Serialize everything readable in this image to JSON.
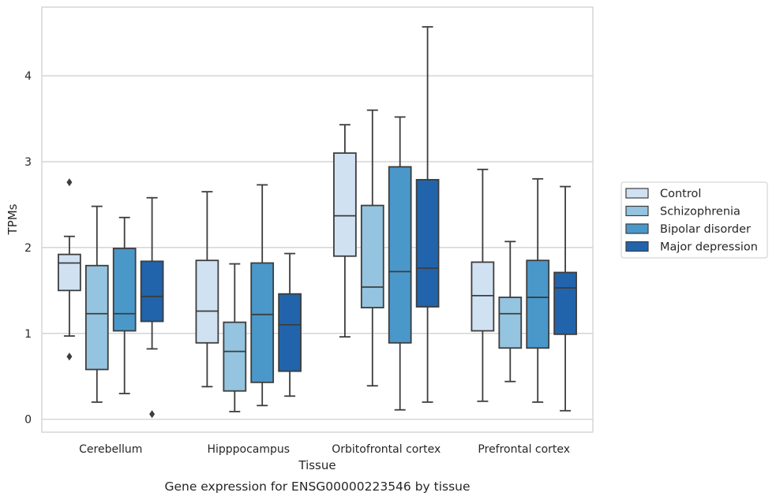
{
  "chart_data": {
    "type": "box",
    "xlabel": "Tissue",
    "ylabel": "TPMs",
    "caption": "Gene expression for ENSG00000223546 by tissue",
    "ylim": [
      -0.15,
      4.8
    ],
    "yticks": [
      0,
      1,
      2,
      3,
      4
    ],
    "grid": "horizontal",
    "legend_position": "right",
    "categories": [
      "Cerebellum",
      "Hipppocampus",
      "Orbitofrontal cortex",
      "Prefrontal cortex"
    ],
    "series": [
      {
        "name": "Control",
        "color": "#d0e1f2",
        "boxes": [
          {
            "whislo": 0.97,
            "q1": 1.5,
            "med": 1.82,
            "q3": 1.92,
            "whishi": 2.13,
            "fliers": [
              2.76,
              0.73
            ]
          },
          {
            "whislo": 0.38,
            "q1": 0.89,
            "med": 1.26,
            "q3": 1.85,
            "whishi": 2.65,
            "fliers": []
          },
          {
            "whislo": 0.96,
            "q1": 1.9,
            "med": 2.37,
            "q3": 3.1,
            "whishi": 3.43,
            "fliers": []
          },
          {
            "whislo": 0.21,
            "q1": 1.03,
            "med": 1.44,
            "q3": 1.83,
            "whishi": 2.91,
            "fliers": []
          }
        ]
      },
      {
        "name": "Schizophrenia",
        "color": "#94c4df",
        "boxes": [
          {
            "whislo": 0.2,
            "q1": 0.58,
            "med": 1.23,
            "q3": 1.79,
            "whishi": 2.48,
            "fliers": []
          },
          {
            "whislo": 0.09,
            "q1": 0.33,
            "med": 0.79,
            "q3": 1.13,
            "whishi": 1.81,
            "fliers": []
          },
          {
            "whislo": 0.39,
            "q1": 1.3,
            "med": 1.54,
            "q3": 2.49,
            "whishi": 3.6,
            "fliers": []
          },
          {
            "whislo": 0.44,
            "q1": 0.83,
            "med": 1.23,
            "q3": 1.42,
            "whishi": 2.07,
            "fliers": []
          }
        ]
      },
      {
        "name": "Bipolar disorder",
        "color": "#4a98c9",
        "boxes": [
          {
            "whislo": 0.3,
            "q1": 1.03,
            "med": 1.23,
            "q3": 1.99,
            "whishi": 2.35,
            "fliers": []
          },
          {
            "whislo": 0.16,
            "q1": 0.43,
            "med": 1.22,
            "q3": 1.82,
            "whishi": 2.73,
            "fliers": []
          },
          {
            "whislo": 0.11,
            "q1": 0.89,
            "med": 1.72,
            "q3": 2.94,
            "whishi": 3.52,
            "fliers": []
          },
          {
            "whislo": 0.2,
            "q1": 0.83,
            "med": 1.42,
            "q3": 1.85,
            "whishi": 2.8,
            "fliers": []
          }
        ]
      },
      {
        "name": "Major depression",
        "color": "#2164ab",
        "boxes": [
          {
            "whislo": 0.82,
            "q1": 1.14,
            "med": 1.43,
            "q3": 1.84,
            "whishi": 2.58,
            "fliers": [
              0.06
            ]
          },
          {
            "whislo": 0.27,
            "q1": 0.56,
            "med": 1.1,
            "q3": 1.46,
            "whishi": 1.93,
            "fliers": []
          },
          {
            "whislo": 0.2,
            "q1": 1.31,
            "med": 1.76,
            "q3": 2.79,
            "whishi": 4.57,
            "fliers": []
          },
          {
            "whislo": 0.1,
            "q1": 0.99,
            "med": 1.53,
            "q3": 1.71,
            "whishi": 2.71,
            "fliers": []
          }
        ]
      }
    ]
  }
}
